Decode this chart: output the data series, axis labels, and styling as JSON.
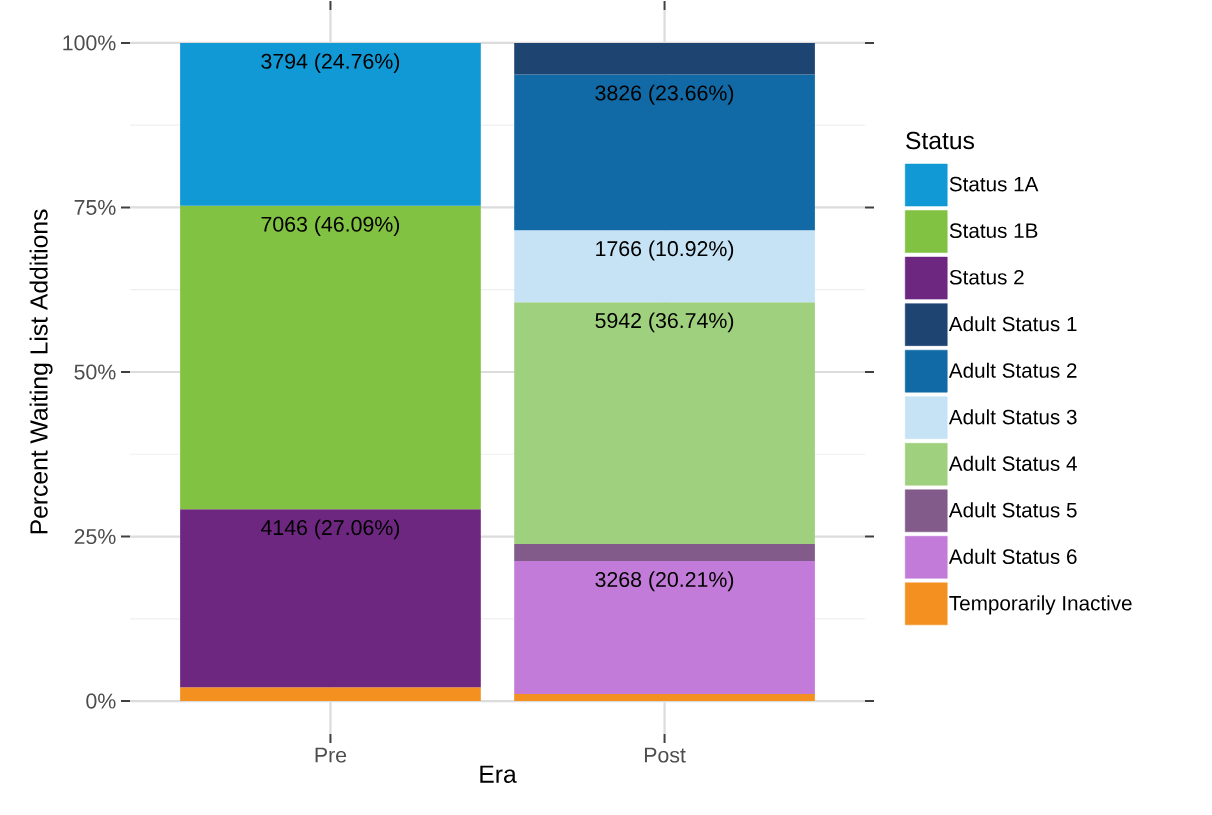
{
  "chart_data": {
    "type": "bar",
    "stacked": true,
    "xlabel": "Era",
    "ylabel": "Percent Waiting List Additions",
    "legend_title": "Status",
    "categories": [
      "Pre",
      "Post"
    ],
    "ylim": [
      -5,
      105
    ],
    "yticks": [
      {
        "value": 0,
        "label": "0%"
      },
      {
        "value": 25,
        "label": "25%"
      },
      {
        "value": 50,
        "label": "50%"
      },
      {
        "value": 75,
        "label": "75%"
      },
      {
        "value": 100,
        "label": "100%"
      }
    ],
    "grid": true,
    "legend": "right",
    "series": [
      {
        "name": "Temporarily Inactive",
        "color": "#f39020",
        "values": [
          2.09,
          1.06
        ]
      },
      {
        "name": "Adult Status 6",
        "color": "#c27bd8",
        "values": [
          null,
          20.21
        ],
        "value_labels": [
          null,
          "3268 (20.21%)"
        ]
      },
      {
        "name": "Adult Status 5",
        "color": "#825b8b",
        "values": [
          null,
          2.6
        ]
      },
      {
        "name": "Adult Status 4",
        "color": "#9fd07e",
        "values": [
          null,
          36.74
        ],
        "value_labels": [
          null,
          "5942 (36.74%)"
        ]
      },
      {
        "name": "Adult Status 3",
        "color": "#c6e3f6",
        "values": [
          null,
          10.92
        ],
        "value_labels": [
          null,
          "1766 (10.92%)"
        ]
      },
      {
        "name": "Adult Status 2",
        "color": "#116aa6",
        "values": [
          null,
          23.66
        ],
        "value_labels": [
          null,
          "3826 (23.66%)"
        ]
      },
      {
        "name": "Adult Status 1",
        "color": "#1e4471",
        "values": [
          null,
          4.8
        ]
      },
      {
        "name": "Status 2",
        "color": "#6e2780",
        "values": [
          27.06,
          null
        ],
        "value_labels": [
          "4146 (27.06%)",
          null
        ]
      },
      {
        "name": "Status 1B",
        "color": "#81c242",
        "values": [
          46.09,
          null
        ],
        "value_labels": [
          "7063 (46.09%)",
          null
        ]
      },
      {
        "name": "Status 1A",
        "color": "#1199d6",
        "values": [
          24.76,
          null
        ],
        "value_labels": [
          "3794 (24.76%)",
          null
        ]
      }
    ]
  }
}
